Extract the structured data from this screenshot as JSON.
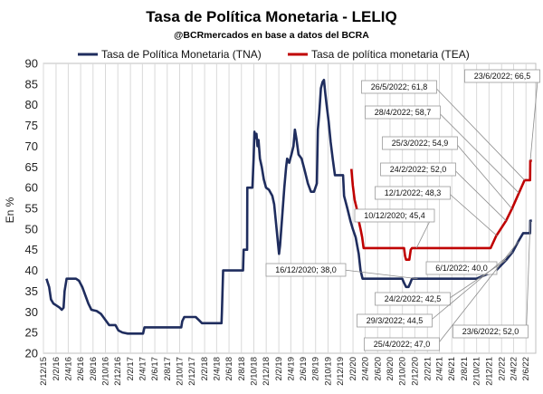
{
  "chart_data": {
    "type": "line",
    "title": "Tasa de Política Monetaria - LELIQ",
    "subtitle": "@BCRmercados en base a datos del BCRA",
    "ylabel": "En %",
    "xlabel": "",
    "ylim": [
      20,
      90
    ],
    "yticks": [
      "20",
      "25",
      "30",
      "35",
      "40",
      "45",
      "50",
      "55",
      "60",
      "65",
      "70",
      "75",
      "80",
      "85",
      "90"
    ],
    "xlim": [
      "2015-12-02",
      "2022-07-20"
    ],
    "x_tick_labels": [
      "2/12/15",
      "2/2/16",
      "2/4/16",
      "2/6/16",
      "2/8/16",
      "2/10/16",
      "2/12/16",
      "2/2/17",
      "2/4/17",
      "2/6/17",
      "2/8/17",
      "2/10/17",
      "2/12/17",
      "2/2/18",
      "2/4/18",
      "2/6/18",
      "2/8/18",
      "2/10/18",
      "2/12/18",
      "2/2/19",
      "2/4/19",
      "2/6/19",
      "2/8/19",
      "2/10/19",
      "2/12/19",
      "2/2/20",
      "2/4/20",
      "2/6/20",
      "2/8/20",
      "2/10/20",
      "2/12/20",
      "2/2/21",
      "2/4/21",
      "2/6/21",
      "2/8/21",
      "2/10/21",
      "2/12/21",
      "2/2/22",
      "2/4/22",
      "2/6/22"
    ],
    "grid": "vertical",
    "legend": "top",
    "series": [
      {
        "name": "Tasa de Política Monetaria (TNA)",
        "color": "#1f2d5e",
        "points": [
          [
            "2015-12-17",
            38
          ],
          [
            "2015-12-30",
            36
          ],
          [
            "2016-01-08",
            33
          ],
          [
            "2016-01-20",
            32
          ],
          [
            "2016-02-05",
            31.5
          ],
          [
            "2016-02-20",
            31
          ],
          [
            "2016-03-01",
            30.5
          ],
          [
            "2016-03-10",
            31
          ],
          [
            "2016-03-15",
            35
          ],
          [
            "2016-03-25",
            38
          ],
          [
            "2016-04-20",
            38
          ],
          [
            "2016-05-10",
            38
          ],
          [
            "2016-05-25",
            37.5
          ],
          [
            "2016-06-10",
            36
          ],
          [
            "2016-06-25",
            34
          ],
          [
            "2016-07-10",
            32
          ],
          [
            "2016-07-25",
            30.5
          ],
          [
            "2016-08-20",
            30.2
          ],
          [
            "2016-09-10",
            29.5
          ],
          [
            "2016-09-25",
            28.5
          ],
          [
            "2016-10-10",
            27.5
          ],
          [
            "2016-10-20",
            26.8
          ],
          [
            "2016-11-20",
            26.8
          ],
          [
            "2016-12-05",
            25.5
          ],
          [
            "2016-12-25",
            25
          ],
          [
            "2017-01-20",
            24.75
          ],
          [
            "2017-02-20",
            24.75
          ],
          [
            "2017-03-20",
            24.75
          ],
          [
            "2017-04-05",
            24.75
          ],
          [
            "2017-04-12",
            26.25
          ],
          [
            "2017-05-20",
            26.25
          ],
          [
            "2017-06-20",
            26.25
          ],
          [
            "2017-07-20",
            26.25
          ],
          [
            "2017-08-20",
            26.25
          ],
          [
            "2017-09-20",
            26.25
          ],
          [
            "2017-10-10",
            26.25
          ],
          [
            "2017-10-15",
            27.75
          ],
          [
            "2017-10-25",
            28.75
          ],
          [
            "2017-12-20",
            28.75
          ],
          [
            "2018-01-05",
            28
          ],
          [
            "2018-01-20",
            27.25
          ],
          [
            "2018-03-20",
            27.25
          ],
          [
            "2018-04-26",
            27.25
          ],
          [
            "2018-04-28",
            30
          ],
          [
            "2018-05-04",
            40
          ],
          [
            "2018-06-10",
            40
          ],
          [
            "2018-07-20",
            40
          ],
          [
            "2018-08-10",
            40
          ],
          [
            "2018-08-13",
            45
          ],
          [
            "2018-08-30",
            45
          ],
          [
            "2018-08-31",
            60
          ],
          [
            "2018-09-25",
            60
          ],
          [
            "2018-10-01",
            67
          ],
          [
            "2018-10-05",
            73.5
          ],
          [
            "2018-10-10",
            72
          ],
          [
            "2018-10-15",
            73
          ],
          [
            "2018-10-20",
            70
          ],
          [
            "2018-10-25",
            71.5
          ],
          [
            "2018-11-01",
            67
          ],
          [
            "2018-11-10",
            65
          ],
          [
            "2018-11-20",
            62
          ],
          [
            "2018-12-01",
            60
          ],
          [
            "2018-12-15",
            59.5
          ],
          [
            "2019-01-01",
            58
          ],
          [
            "2019-01-10",
            56
          ],
          [
            "2019-01-20",
            51
          ],
          [
            "2019-01-28",
            47
          ],
          [
            "2019-02-03",
            44
          ],
          [
            "2019-02-08",
            46
          ],
          [
            "2019-02-14",
            50
          ],
          [
            "2019-02-20",
            54
          ],
          [
            "2019-03-01",
            60
          ],
          [
            "2019-03-10",
            65
          ],
          [
            "2019-03-15",
            67
          ],
          [
            "2019-03-25",
            66
          ],
          [
            "2019-04-05",
            68
          ],
          [
            "2019-04-15",
            70
          ],
          [
            "2019-04-22",
            74
          ],
          [
            "2019-04-29",
            72
          ],
          [
            "2019-05-10",
            68
          ],
          [
            "2019-05-25",
            67
          ],
          [
            "2019-06-10",
            64
          ],
          [
            "2019-06-25",
            61
          ],
          [
            "2019-07-10",
            59
          ],
          [
            "2019-07-25",
            59
          ],
          [
            "2019-08-01",
            60
          ],
          [
            "2019-08-08",
            61
          ],
          [
            "2019-08-13",
            74
          ],
          [
            "2019-08-20",
            78
          ],
          [
            "2019-08-28",
            84
          ],
          [
            "2019-09-05",
            85.5
          ],
          [
            "2019-09-12",
            86
          ],
          [
            "2019-09-18",
            83
          ],
          [
            "2019-09-25",
            80
          ],
          [
            "2019-10-05",
            76
          ],
          [
            "2019-10-15",
            71
          ],
          [
            "2019-10-25",
            67
          ],
          [
            "2019-11-05",
            63
          ],
          [
            "2019-12-15",
            63
          ],
          [
            "2019-12-20",
            58
          ],
          [
            "2020-01-05",
            55
          ],
          [
            "2020-01-20",
            52
          ],
          [
            "2020-02-01",
            50
          ],
          [
            "2020-02-15",
            48
          ],
          [
            "2020-03-01",
            44
          ],
          [
            "2020-03-10",
            40
          ],
          [
            "2020-03-20",
            38
          ],
          [
            "2020-06-01",
            38
          ],
          [
            "2020-09-01",
            38
          ],
          [
            "2020-10-01",
            38
          ],
          [
            "2020-10-10",
            37
          ],
          [
            "2020-10-20",
            36
          ],
          [
            "2020-11-01",
            36
          ],
          [
            "2020-11-10",
            37
          ],
          [
            "2020-11-18",
            38
          ],
          [
            "2021-02-01",
            38
          ],
          [
            "2021-06-01",
            38
          ],
          [
            "2021-10-01",
            38
          ],
          [
            "2022-01-06",
            40
          ],
          [
            "2022-02-24",
            42.5
          ],
          [
            "2022-03-29",
            44.5
          ],
          [
            "2022-04-25",
            47
          ],
          [
            "2022-05-19",
            49
          ],
          [
            "2022-06-22",
            49
          ],
          [
            "2022-06-23",
            52
          ],
          [
            "2022-07-01",
            52
          ]
        ]
      },
      {
        "name": "Tasa de política monetaria (TEA)",
        "color": "#c00000",
        "points": [
          [
            "2020-01-25",
            64.5
          ],
          [
            "2020-02-01",
            60.5
          ],
          [
            "2020-02-10",
            57
          ],
          [
            "2020-02-20",
            55
          ],
          [
            "2020-03-01",
            52
          ],
          [
            "2020-03-10",
            50
          ],
          [
            "2020-03-18",
            48
          ],
          [
            "2020-03-25",
            45.4
          ],
          [
            "2020-06-01",
            45.4
          ],
          [
            "2020-09-01",
            45.4
          ],
          [
            "2020-10-10",
            45.4
          ],
          [
            "2020-10-15",
            43.5
          ],
          [
            "2020-10-20",
            42.6
          ],
          [
            "2020-11-05",
            42.6
          ],
          [
            "2020-11-12",
            45
          ],
          [
            "2020-11-18",
            45.4
          ],
          [
            "2021-01-01",
            45.4
          ],
          [
            "2021-06-01",
            45.4
          ],
          [
            "2021-10-01",
            45.4
          ],
          [
            "2021-12-10",
            45.4
          ],
          [
            "2022-01-06",
            48.3
          ],
          [
            "2022-02-24",
            52.0
          ],
          [
            "2022-03-25",
            54.9
          ],
          [
            "2022-04-28",
            58.7
          ],
          [
            "2022-05-26",
            61.8
          ],
          [
            "2022-06-22",
            61.8
          ],
          [
            "2022-06-23",
            66.5
          ],
          [
            "2022-07-01",
            66.5
          ]
        ]
      }
    ],
    "annotations": [
      {
        "text": "23/6/2022; 66,5",
        "date": "2022-06-23",
        "value": 66.5
      },
      {
        "text": "26/5/2022; 61,8",
        "date": "2022-05-26",
        "value": 61.8
      },
      {
        "text": "28/4/2022; 58,7",
        "date": "2022-04-28",
        "value": 58.7
      },
      {
        "text": "25/3/2022; 54,9",
        "date": "2022-03-25",
        "value": 54.9
      },
      {
        "text": "24/2/2022; 52,0",
        "date": "2022-02-24",
        "value": 52.0
      },
      {
        "text": "12/1/2022; 48,3",
        "date": "2022-01-12",
        "value": 48.3
      },
      {
        "text": "10/12/2020; 45,4",
        "date": "2020-12-10",
        "value": 45.4
      },
      {
        "text": "16/12/2020; 38,0",
        "date": "2020-12-16",
        "value": 38.0
      },
      {
        "text": "6/1/2022; 40,0",
        "date": "2022-01-06",
        "value": 40.0
      },
      {
        "text": "24/2/2022; 42,5",
        "date": "2022-02-24",
        "value": 42.5
      },
      {
        "text": "29/3/2022; 44,5",
        "date": "2022-03-29",
        "value": 44.5
      },
      {
        "text": "25/4/2022; 47,0",
        "date": "2022-04-25",
        "value": 47.0
      },
      {
        "text": "23/6/2022; 52,0",
        "date": "2022-06-23",
        "value": 52.0
      }
    ]
  }
}
